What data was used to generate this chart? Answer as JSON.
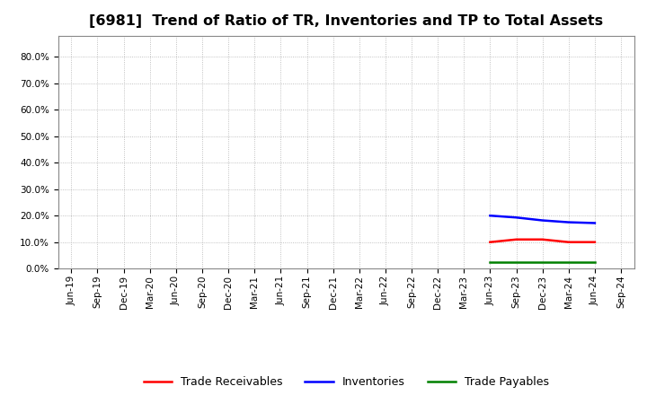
{
  "title": "[6981]  Trend of Ratio of TR, Inventories and TP to Total Assets",
  "x_labels": [
    "Jun-19",
    "Sep-19",
    "Dec-19",
    "Mar-20",
    "Jun-20",
    "Sep-20",
    "Dec-20",
    "Mar-21",
    "Jun-21",
    "Sep-21",
    "Dec-21",
    "Mar-22",
    "Jun-22",
    "Sep-22",
    "Dec-22",
    "Mar-23",
    "Jun-23",
    "Sep-23",
    "Dec-23",
    "Mar-24",
    "Jun-24",
    "Sep-24"
  ],
  "trade_receivables": {
    "label": "Trade Receivables",
    "color": "#ff0000",
    "data_x": [
      16,
      17,
      18,
      19,
      20
    ],
    "data_y": [
      0.1,
      0.11,
      0.11,
      0.1,
      0.1
    ]
  },
  "inventories": {
    "label": "Inventories",
    "color": "#0000ff",
    "data_x": [
      16,
      17,
      18,
      19,
      20
    ],
    "data_y": [
      0.2,
      0.193,
      0.182,
      0.175,
      0.172
    ]
  },
  "trade_payables": {
    "label": "Trade Payables",
    "color": "#008000",
    "data_x": [
      16,
      17,
      18,
      19,
      20
    ],
    "data_y": [
      0.025,
      0.025,
      0.025,
      0.025,
      0.025
    ]
  },
  "ylim": [
    0.0,
    0.88
  ],
  "yticks": [
    0.0,
    0.1,
    0.2,
    0.3,
    0.4,
    0.5,
    0.6,
    0.7,
    0.8
  ],
  "background_color": "#ffffff",
  "grid_color": "#b0b0b0",
  "title_fontsize": 11.5,
  "tick_fontsize": 7.5,
  "legend_fontsize": 9
}
